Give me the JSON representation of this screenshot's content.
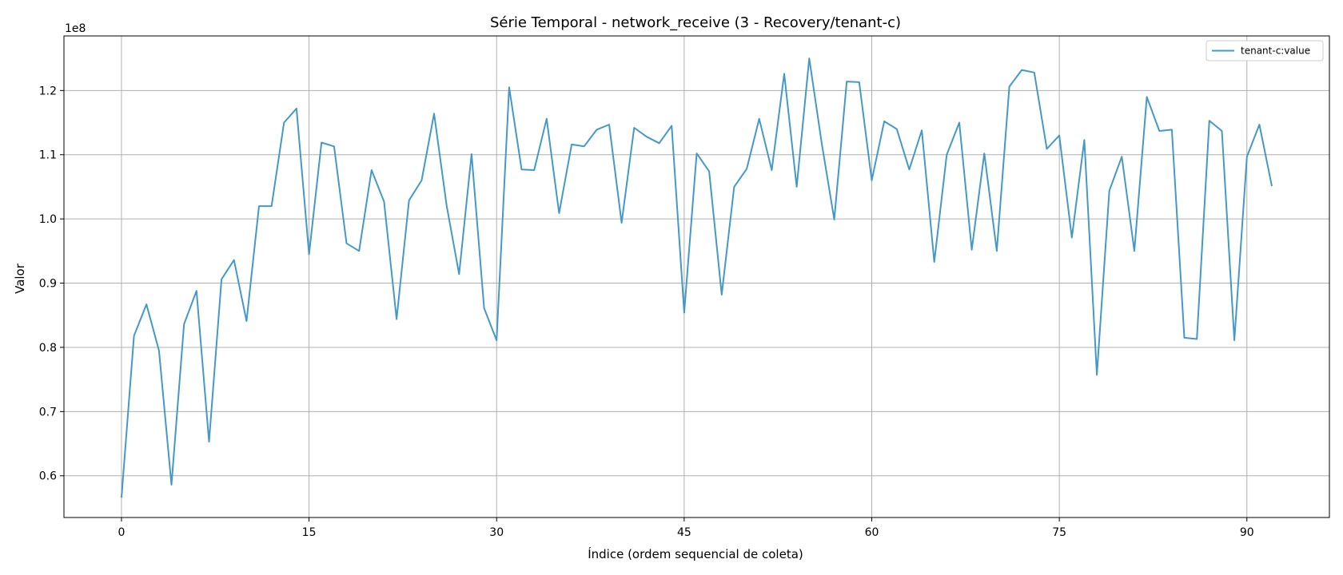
{
  "chart_data": {
    "type": "line",
    "title": "Série Temporal - network_receive (3 - Recovery/tenant-c)",
    "xlabel": "Índice (ordem sequencial de coleta)",
    "ylabel": "Valor",
    "y_offset_label": "1e8",
    "xlim": [
      -4.6,
      96.6
    ],
    "ylim": [
      0.535,
      1.285
    ],
    "x_ticks": [
      0,
      15,
      30,
      45,
      60,
      75,
      90
    ],
    "x_tick_labels": [
      "0",
      "15",
      "30",
      "45",
      "60",
      "75",
      "90"
    ],
    "y_ticks": [
      0.6,
      0.7,
      0.8,
      0.9,
      1.0,
      1.1,
      1.2
    ],
    "y_tick_labels": [
      "0.6",
      "0.7",
      "0.8",
      "0.9",
      "1.0",
      "1.1",
      "1.2"
    ],
    "grid": true,
    "legend_position": "top-right",
    "line_color": "#4499c7",
    "series": [
      {
        "name": "tenant-c:value",
        "x": [
          0,
          1,
          2,
          3,
          4,
          5,
          6,
          7,
          8,
          9,
          10,
          11,
          12,
          13,
          14,
          15,
          16,
          17,
          18,
          19,
          20,
          21,
          22,
          23,
          24,
          25,
          26,
          27,
          28,
          29,
          30,
          31,
          32,
          33,
          34,
          35,
          36,
          37,
          38,
          39,
          40,
          41,
          42,
          43,
          44,
          45,
          46,
          47,
          48,
          49,
          50,
          51,
          52,
          53,
          54,
          55,
          56,
          57,
          58,
          59,
          60,
          61,
          62,
          63,
          64,
          65,
          66,
          67,
          68,
          69,
          70,
          71,
          72,
          73,
          74,
          75,
          76,
          77,
          78,
          79,
          80,
          81,
          82,
          83,
          84,
          85,
          86,
          87,
          88,
          89,
          90,
          91,
          92
        ],
        "values": [
          0.566,
          0.818,
          0.867,
          0.795,
          0.586,
          0.836,
          0.888,
          0.653,
          0.906,
          0.936,
          0.841,
          1.02,
          1.02,
          1.15,
          1.172,
          0.945,
          1.119,
          1.113,
          0.962,
          0.95,
          1.076,
          1.027,
          0.844,
          1.029,
          1.06,
          1.164,
          1.021,
          0.914,
          1.101,
          0.861,
          0.811,
          1.205,
          1.077,
          1.076,
          1.156,
          1.009,
          1.116,
          1.113,
          1.139,
          1.147,
          0.994,
          1.142,
          1.128,
          1.118,
          1.145,
          0.854,
          1.102,
          1.074,
          0.882,
          1.05,
          1.078,
          1.156,
          1.076,
          1.226,
          1.05,
          1.25,
          1.118,
          0.999,
          1.214,
          1.213,
          1.06,
          1.152,
          1.14,
          1.077,
          1.138,
          0.933,
          1.1,
          1.15,
          0.952,
          1.102,
          0.95,
          1.206,
          1.232,
          1.228,
          1.109,
          1.13,
          0.971,
          1.123,
          0.757,
          1.044,
          1.097,
          0.95,
          1.19,
          1.137,
          1.139,
          0.815,
          0.813,
          1.153,
          1.137,
          0.811,
          1.097,
          1.147,
          1.051
        ]
      }
    ]
  }
}
